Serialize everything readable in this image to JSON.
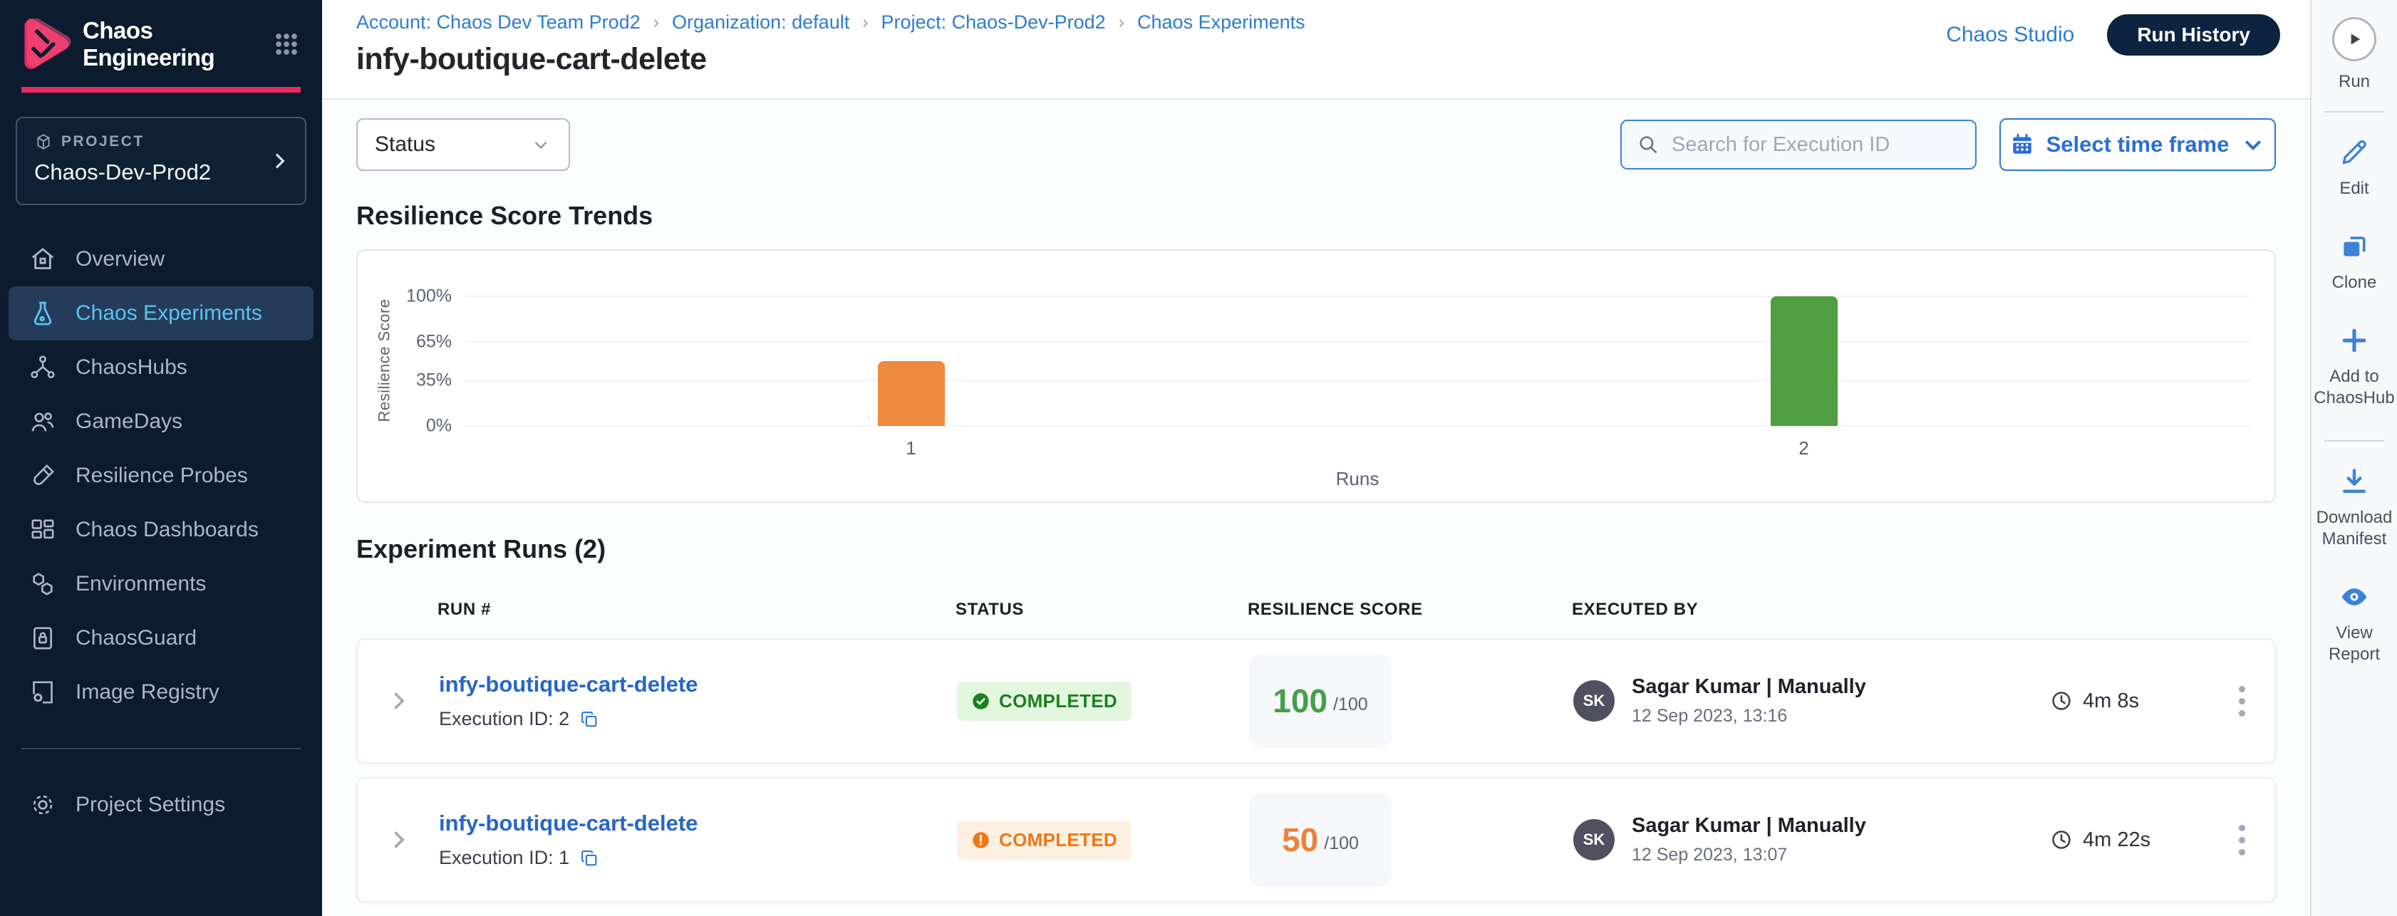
{
  "brand": {
    "title": "Chaos Engineering"
  },
  "project": {
    "label": "PROJECT",
    "name": "Chaos-Dev-Prod2"
  },
  "sidebar": {
    "items": [
      {
        "label": "Overview",
        "icon": "home-icon"
      },
      {
        "label": "Chaos Experiments",
        "icon": "flask-icon",
        "active": true
      },
      {
        "label": "ChaosHubs",
        "icon": "hub-icon"
      },
      {
        "label": "GameDays",
        "icon": "users-icon"
      },
      {
        "label": "Resilience Probes",
        "icon": "probe-icon"
      },
      {
        "label": "Chaos Dashboards",
        "icon": "dashboards-icon"
      },
      {
        "label": "Environments",
        "icon": "hexagons-icon"
      },
      {
        "label": "ChaosGuard",
        "icon": "lock-card-icon"
      },
      {
        "label": "Image Registry",
        "icon": "registry-icon"
      }
    ],
    "settings_label": "Project Settings"
  },
  "header": {
    "breadcrumbs": [
      "Account: Chaos Dev Team Prod2",
      "Organization: default",
      "Project: Chaos-Dev-Prod2",
      "Chaos Experiments"
    ],
    "separator": "›",
    "title": "infy-boutique-cart-delete",
    "chaos_studio_label": "Chaos Studio",
    "run_history_label": "Run History"
  },
  "filters": {
    "status_label": "Status",
    "search_placeholder": "Search for Execution ID",
    "time_frame_label": "Select time frame"
  },
  "sections": {
    "trends_title": "Resilience Score Trends",
    "runs_title": "Experiment Runs (2)"
  },
  "chart_data": {
    "type": "bar",
    "title": "Resilience Score Trends",
    "categories": [
      "1",
      "2"
    ],
    "values": [
      50,
      100
    ],
    "colors": [
      "#ee8a3d",
      "#4f9e42"
    ],
    "yticks": [
      {
        "pos": 0,
        "label": "0%"
      },
      {
        "pos": 35,
        "label": "35%"
      },
      {
        "pos": 65,
        "label": "65%"
      },
      {
        "pos": 100,
        "label": "100%"
      }
    ],
    "ylim": [
      0,
      100
    ],
    "xlabel": "Runs",
    "ylabel": "Resilience Score",
    "grid": true,
    "legend": false
  },
  "table": {
    "headers": [
      "RUN #",
      "STATUS",
      "RESILIENCE SCORE",
      "EXECUTED BY"
    ],
    "rows": [
      {
        "name": "infy-boutique-cart-delete",
        "execution_id": "Execution ID: 2",
        "status": "COMPLETED",
        "status_variant": "success",
        "score": "100",
        "score_total": "/100",
        "executor_initials": "SK",
        "executor": "Sagar Kumar | Manually",
        "date": "12 Sep 2023, 13:16",
        "duration": "4m 8s"
      },
      {
        "name": "infy-boutique-cart-delete",
        "execution_id": "Execution ID: 1",
        "status": "COMPLETED",
        "status_variant": "warning",
        "score": "50",
        "score_total": "/100",
        "executor_initials": "SK",
        "executor": "Sagar Kumar | Manually",
        "date": "12 Sep 2023, 13:07",
        "duration": "4m 22s"
      }
    ]
  },
  "rail": {
    "run_label": "Run",
    "edit_label": "Edit",
    "clone_label": "Clone",
    "add_label": "Add to ChaosHub",
    "download_label": "Download Manifest",
    "view_label": "View Report"
  },
  "colors": {
    "accent_pink": "#e9295f",
    "nav_bg": "#0c1b2d",
    "active_nav_text": "#5cc2f1",
    "primary_blue": "#2e77d0",
    "success_green": "#44a048",
    "warning_orange": "#f08033"
  }
}
